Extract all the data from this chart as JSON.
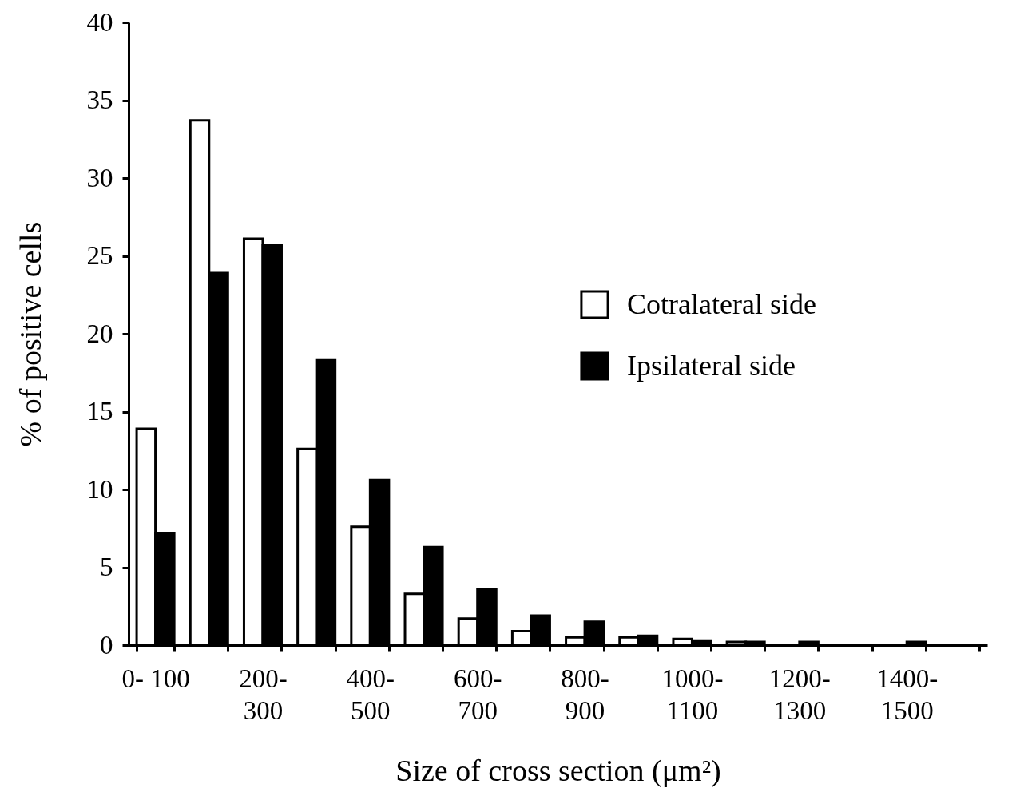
{
  "chart_data": {
    "type": "bar",
    "xlabel": "Size of cross section (μm²)",
    "ylabel": "% of positive cells",
    "categories": [
      "0- 100",
      null,
      "200-\n300",
      null,
      "400-\n500",
      null,
      "600-\n700",
      null,
      "800-\n900",
      null,
      "1000-\n1100",
      null,
      "1200-\n1300",
      null,
      "1400-\n1500",
      null
    ],
    "series": [
      {
        "name": "Cotralateral side",
        "color": "#ffffff",
        "values": [
          13.9,
          33.7,
          26.1,
          12.6,
          7.6,
          3.3,
          1.7,
          0.9,
          0.5,
          0.5,
          0.4,
          0.2,
          0,
          0,
          0,
          0
        ]
      },
      {
        "name": "Ipsilateral side",
        "color": "#000000",
        "values": [
          7.2,
          23.9,
          25.7,
          18.3,
          10.6,
          6.3,
          3.6,
          1.9,
          1.5,
          0.6,
          0.3,
          0.2,
          0.2,
          0,
          0.2,
          0
        ]
      }
    ],
    "ylim": [
      0,
      40
    ],
    "yticks": [
      0,
      5,
      10,
      15,
      20,
      25,
      30,
      35,
      40
    ],
    "grid": false,
    "legend": "right"
  }
}
